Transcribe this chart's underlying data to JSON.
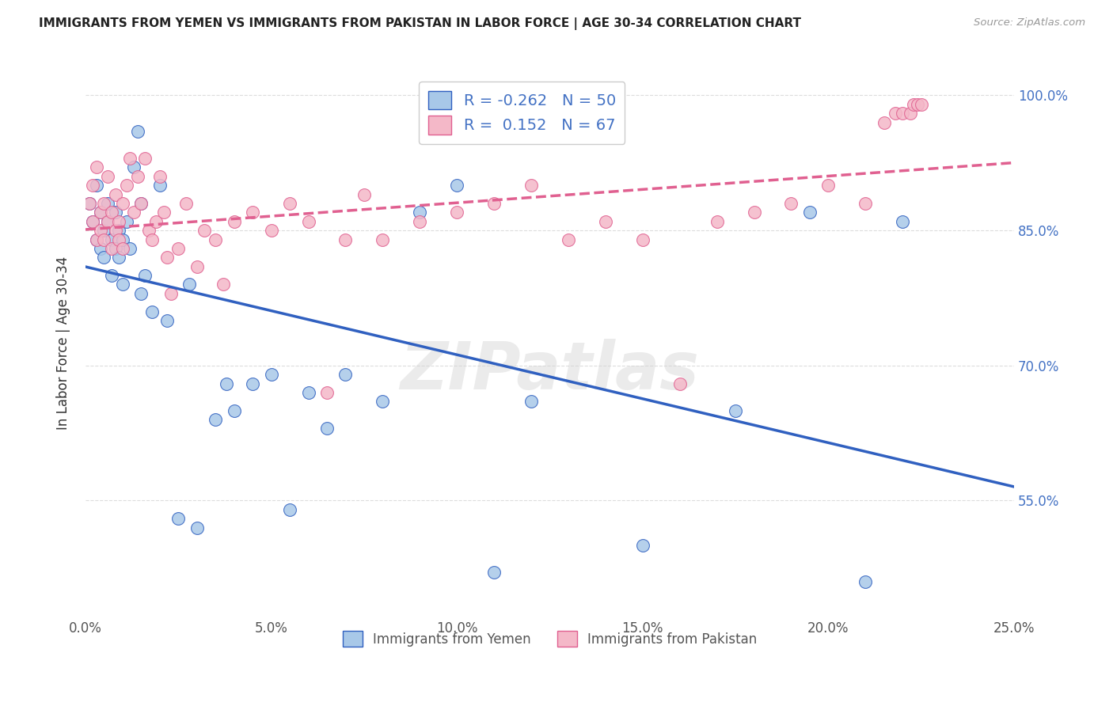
{
  "title": "IMMIGRANTS FROM YEMEN VS IMMIGRANTS FROM PAKISTAN IN LABOR FORCE | AGE 30-34 CORRELATION CHART",
  "source": "Source: ZipAtlas.com",
  "ylabel": "In Labor Force | Age 30-34",
  "xlim": [
    0.0,
    0.25
  ],
  "ylim": [
    0.42,
    1.03
  ],
  "ytick_labels": [
    "55.0%",
    "70.0%",
    "85.0%",
    "100.0%"
  ],
  "ytick_values": [
    0.55,
    0.7,
    0.85,
    1.0
  ],
  "xtick_labels": [
    "0.0%",
    "5.0%",
    "10.0%",
    "15.0%",
    "20.0%",
    "25.0%"
  ],
  "xtick_values": [
    0.0,
    0.05,
    0.1,
    0.15,
    0.2,
    0.25
  ],
  "legend_blue_R": "-0.262",
  "legend_blue_N": "50",
  "legend_pink_R": "0.152",
  "legend_pink_N": "67",
  "blue_color": "#a8c8e8",
  "pink_color": "#f4b8c8",
  "line_blue_color": "#3060c0",
  "line_pink_color": "#e06090",
  "watermark": "ZIPatlas",
  "blue_x": [
    0.001,
    0.002,
    0.003,
    0.003,
    0.004,
    0.004,
    0.005,
    0.005,
    0.006,
    0.006,
    0.007,
    0.007,
    0.008,
    0.008,
    0.009,
    0.009,
    0.01,
    0.01,
    0.011,
    0.012,
    0.013,
    0.014,
    0.015,
    0.016,
    0.018,
    0.02,
    0.025,
    0.03,
    0.035,
    0.04,
    0.045,
    0.05,
    0.06,
    0.07,
    0.08,
    0.09,
    0.1,
    0.11,
    0.12,
    0.15,
    0.175,
    0.195,
    0.21,
    0.22,
    0.015,
    0.022,
    0.028,
    0.038,
    0.055,
    0.065
  ],
  "blue_y": [
    0.88,
    0.86,
    0.84,
    0.9,
    0.83,
    0.87,
    0.85,
    0.82,
    0.88,
    0.86,
    0.84,
    0.8,
    0.83,
    0.87,
    0.85,
    0.82,
    0.79,
    0.84,
    0.86,
    0.83,
    0.92,
    0.96,
    0.88,
    0.8,
    0.76,
    0.9,
    0.53,
    0.52,
    0.64,
    0.65,
    0.68,
    0.69,
    0.67,
    0.69,
    0.66,
    0.87,
    0.9,
    0.47,
    0.66,
    0.5,
    0.65,
    0.87,
    0.46,
    0.86,
    0.78,
    0.75,
    0.79,
    0.68,
    0.54,
    0.63
  ],
  "pink_x": [
    0.001,
    0.002,
    0.002,
    0.003,
    0.003,
    0.004,
    0.004,
    0.005,
    0.005,
    0.006,
    0.006,
    0.007,
    0.007,
    0.008,
    0.008,
    0.009,
    0.009,
    0.01,
    0.01,
    0.011,
    0.012,
    0.013,
    0.014,
    0.015,
    0.016,
    0.017,
    0.018,
    0.019,
    0.02,
    0.021,
    0.022,
    0.023,
    0.025,
    0.027,
    0.03,
    0.032,
    0.035,
    0.037,
    0.04,
    0.045,
    0.05,
    0.055,
    0.06,
    0.065,
    0.07,
    0.075,
    0.08,
    0.09,
    0.1,
    0.11,
    0.12,
    0.13,
    0.14,
    0.15,
    0.16,
    0.17,
    0.18,
    0.19,
    0.2,
    0.21,
    0.215,
    0.218,
    0.22,
    0.222,
    0.223,
    0.224,
    0.225
  ],
  "pink_y": [
    0.88,
    0.9,
    0.86,
    0.84,
    0.92,
    0.87,
    0.85,
    0.88,
    0.84,
    0.91,
    0.86,
    0.83,
    0.87,
    0.85,
    0.89,
    0.84,
    0.86,
    0.83,
    0.88,
    0.9,
    0.93,
    0.87,
    0.91,
    0.88,
    0.93,
    0.85,
    0.84,
    0.86,
    0.91,
    0.87,
    0.82,
    0.78,
    0.83,
    0.88,
    0.81,
    0.85,
    0.84,
    0.79,
    0.86,
    0.87,
    0.85,
    0.88,
    0.86,
    0.67,
    0.84,
    0.89,
    0.84,
    0.86,
    0.87,
    0.88,
    0.9,
    0.84,
    0.86,
    0.84,
    0.68,
    0.86,
    0.87,
    0.88,
    0.9,
    0.88,
    0.97,
    0.98,
    0.98,
    0.98,
    0.99,
    0.99,
    0.99
  ]
}
